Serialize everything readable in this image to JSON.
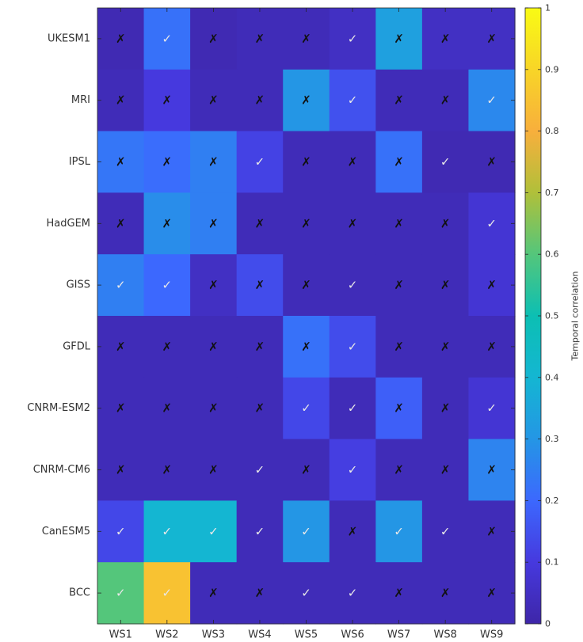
{
  "chart_data": {
    "type": "heatmap",
    "x_categories": [
      "WS1",
      "WS2",
      "WS3",
      "WS4",
      "WS5",
      "WS6",
      "WS7",
      "WS8",
      "WS9"
    ],
    "y_categories": [
      "UKESM1",
      "MRI",
      "IPSL",
      "HadGEM",
      "GISS",
      "GFDL",
      "CNRM-ESM2",
      "CNRM-CM6",
      "CanESM5",
      "BCC"
    ],
    "values": [
      [
        0.02,
        0.22,
        0.02,
        0.03,
        0.03,
        0.05,
        0.33,
        0.05,
        0.05
      ],
      [
        0.03,
        0.1,
        0.03,
        0.03,
        0.3,
        0.15,
        0.03,
        0.03,
        0.27
      ],
      [
        0.23,
        0.21,
        0.25,
        0.12,
        0.03,
        0.03,
        0.22,
        0.02,
        0.02
      ],
      [
        0.03,
        0.28,
        0.25,
        0.03,
        0.03,
        0.03,
        0.03,
        0.03,
        0.08
      ],
      [
        0.25,
        0.2,
        0.05,
        0.14,
        0.03,
        0.03,
        0.03,
        0.03,
        0.08
      ],
      [
        0.03,
        0.03,
        0.03,
        0.03,
        0.22,
        0.14,
        0.03,
        0.03,
        0.03
      ],
      [
        0.03,
        0.03,
        0.03,
        0.03,
        0.13,
        0.03,
        0.18,
        0.03,
        0.08
      ],
      [
        0.03,
        0.03,
        0.03,
        0.03,
        0.03,
        0.11,
        0.03,
        0.03,
        0.26
      ],
      [
        0.13,
        0.4,
        0.4,
        0.03,
        0.3,
        0.03,
        0.3,
        0.03,
        0.03
      ],
      [
        0.6,
        0.85,
        0.03,
        0.03,
        0.03,
        0.03,
        0.03,
        0.03,
        0.03
      ]
    ],
    "marks": [
      [
        "x",
        "check",
        "x",
        "x",
        "x",
        "check",
        "x",
        "x",
        "x"
      ],
      [
        "x",
        "x",
        "x",
        "x",
        "x",
        "check",
        "x",
        "x",
        "check"
      ],
      [
        "x",
        "x",
        "x",
        "check",
        "x",
        "x",
        "x",
        "check",
        "x"
      ],
      [
        "x",
        "x",
        "x",
        "x",
        "x",
        "x",
        "x",
        "x",
        "check"
      ],
      [
        "check",
        "check",
        "x",
        "x",
        "x",
        "check",
        "x",
        "x",
        "x"
      ],
      [
        "x",
        "x",
        "x",
        "x",
        "x",
        "check",
        "x",
        "x",
        "x"
      ],
      [
        "x",
        "x",
        "x",
        "x",
        "check",
        "check",
        "x",
        "x",
        "check"
      ],
      [
        "x",
        "x",
        "x",
        "check",
        "x",
        "check",
        "x",
        "x",
        "x"
      ],
      [
        "check",
        "check",
        "check",
        "check",
        "check",
        "x",
        "check",
        "check",
        "x"
      ],
      [
        "check",
        "check",
        "x",
        "x",
        "check",
        "check",
        "x",
        "x",
        "x"
      ]
    ],
    "mark_symbols": {
      "x": "✗",
      "check": "✓"
    },
    "colorbar": {
      "label": "Temporal correlation",
      "range": [
        0,
        1
      ],
      "ticks": [
        0,
        0.1,
        0.2,
        0.3,
        0.4,
        0.5,
        0.6,
        0.7,
        0.8,
        0.9,
        1
      ],
      "tick_labels": [
        "0",
        "0.1",
        "0.2",
        "0.3",
        "0.4",
        "0.5",
        "0.6",
        "0.7",
        "0.8",
        "0.9",
        "1"
      ]
    },
    "colormap": "parula",
    "title": "",
    "xlabel": "",
    "ylabel": ""
  }
}
